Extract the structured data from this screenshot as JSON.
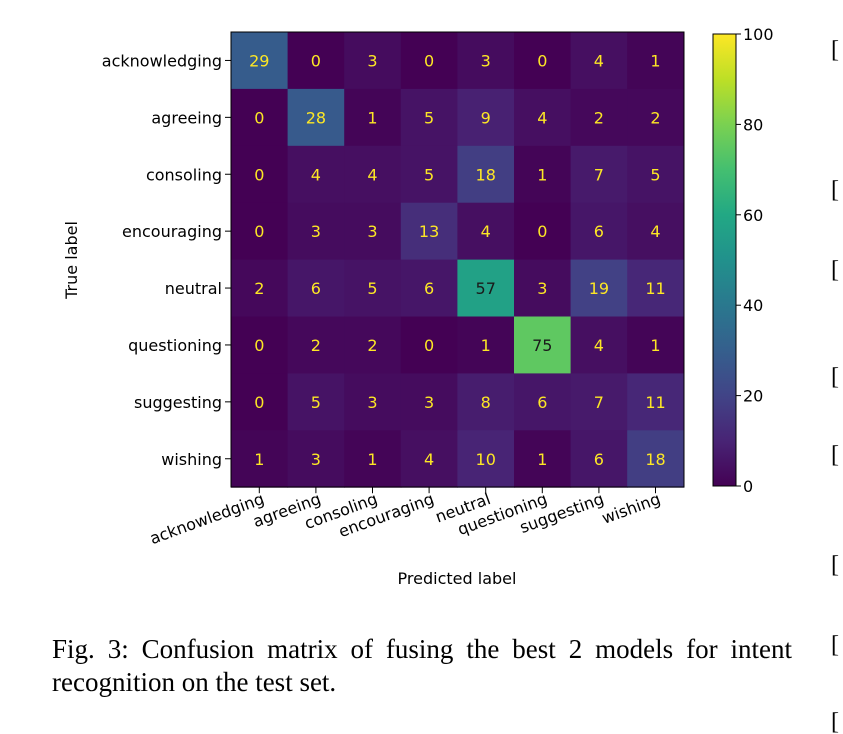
{
  "chart_data": {
    "type": "heatmap",
    "xlabel": "Predicted label",
    "ylabel": "True label",
    "row_labels": [
      "acknowledging",
      "agreeing",
      "consoling",
      "encouraging",
      "neutral",
      "questioning",
      "suggesting",
      "wishing"
    ],
    "col_labels": [
      "acknowledging",
      "agreeing",
      "consoling",
      "encouraging",
      "neutral",
      "questioning",
      "suggesting",
      "wishing"
    ],
    "values": [
      [
        29,
        0,
        3,
        0,
        3,
        0,
        4,
        1
      ],
      [
        0,
        28,
        1,
        5,
        9,
        4,
        2,
        2
      ],
      [
        0,
        4,
        4,
        5,
        18,
        1,
        7,
        5
      ],
      [
        0,
        3,
        3,
        13,
        4,
        0,
        6,
        4
      ],
      [
        2,
        6,
        5,
        6,
        57,
        3,
        19,
        11
      ],
      [
        0,
        2,
        2,
        0,
        1,
        75,
        4,
        1
      ],
      [
        0,
        5,
        3,
        3,
        8,
        6,
        7,
        11
      ],
      [
        1,
        3,
        1,
        4,
        10,
        1,
        6,
        18
      ]
    ],
    "colormap": "viridis",
    "colorbar": {
      "min": 0,
      "max": 100,
      "ticks": [
        0,
        20,
        40,
        60,
        80,
        100
      ]
    }
  },
  "caption": "Fig. 3: Confusion matrix of fusing the best 2 models for intent recognition on the test set.",
  "side_brackets": [
    "[",
    "[",
    "[",
    "[",
    "[",
    "[",
    "[",
    "["
  ]
}
